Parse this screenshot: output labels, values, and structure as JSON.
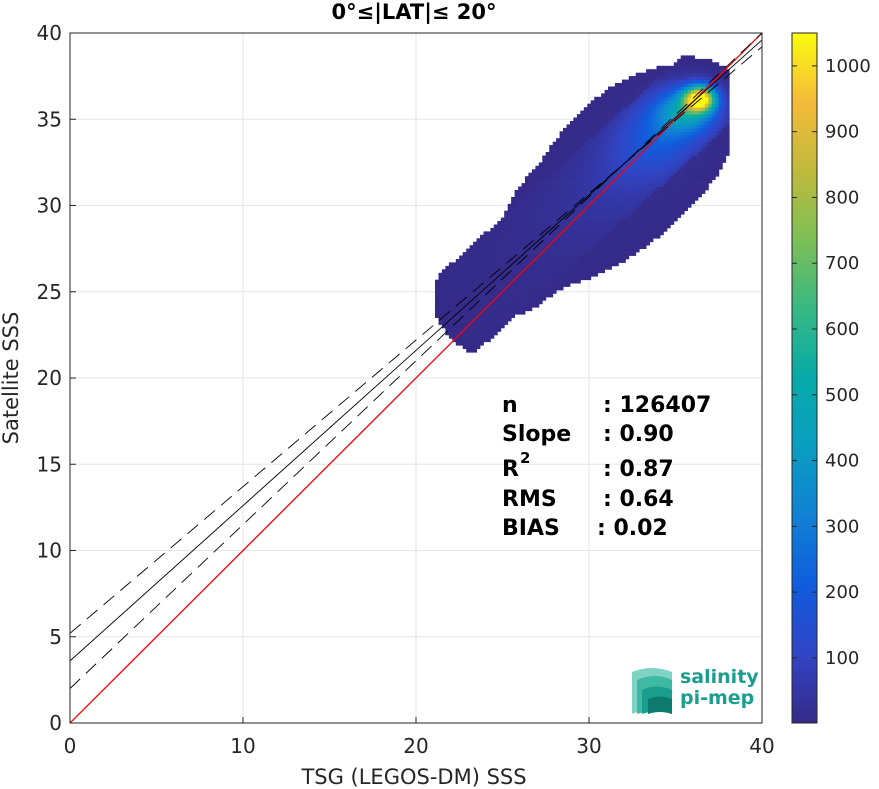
{
  "chart_data": {
    "type": "heatmap",
    "title": "0°≤|LAT|≤ 20°",
    "xlabel": "TSG (LEGOS-DM) SSS",
    "ylabel": "Satellite SSS",
    "xlim": [
      0,
      40
    ],
    "ylim": [
      0,
      40
    ],
    "xticks": [
      "0",
      "10",
      "20",
      "30",
      "40"
    ],
    "yticks": [
      "0",
      "5",
      "10",
      "15",
      "20",
      "25",
      "30",
      "35",
      "40"
    ],
    "grid": true,
    "colorbar": {
      "range": [
        1,
        1050
      ],
      "ticks": [
        "100",
        "200",
        "300",
        "400",
        "500",
        "600",
        "700",
        "800",
        "900",
        "1000"
      ],
      "colormap": "parula"
    },
    "reference_lines": [
      {
        "name": "1:1 line",
        "color": "#ff0000",
        "slope": 1.0,
        "intercept": 0.0,
        "style": "solid"
      },
      {
        "name": "regression",
        "color": "#000000",
        "slope": 0.9,
        "intercept": 3.6,
        "style": "solid"
      },
      {
        "name": "regression + 1.5 std",
        "color": "#000000",
        "slope": 0.85,
        "intercept": 5.2,
        "style": "dashed"
      },
      {
        "name": "regression - 1.5 std",
        "color": "#000000",
        "slope": 0.95,
        "intercept": 2.0,
        "style": "dashed"
      }
    ],
    "density_clusters": [
      {
        "x": 36.3,
        "y": 36.1,
        "sx": 0.6,
        "sy": 0.5,
        "count": 1050
      },
      {
        "x": 35.5,
        "y": 35.4,
        "sx": 1.2,
        "sy": 0.9,
        "count": 420
      },
      {
        "x": 34.0,
        "y": 34.0,
        "sx": 1.6,
        "sy": 1.4,
        "count": 180
      },
      {
        "x": 32.0,
        "y": 32.0,
        "sx": 2.0,
        "sy": 1.8,
        "count": 70
      },
      {
        "x": 29.0,
        "y": 29.0,
        "sx": 2.5,
        "sy": 2.0,
        "count": 25
      },
      {
        "x": 25.5,
        "y": 24.5,
        "sx": 2.5,
        "sy": 2.0,
        "count": 8
      }
    ],
    "stats": {
      "labels": [
        "n",
        "Slope",
        "R",
        "RMS",
        "BIAS"
      ],
      "values": [
        ": 126407",
        ": 0.90",
        ": 0.87",
        ": 0.64",
        ": 0.02"
      ],
      "r_superscript": "2"
    },
    "colors": {
      "one_to_one": "#ff0000",
      "regression": "#000000",
      "logo": "#1a9e8f"
    }
  },
  "logo": {
    "line1": "salinity",
    "line2": "pi-mep"
  }
}
